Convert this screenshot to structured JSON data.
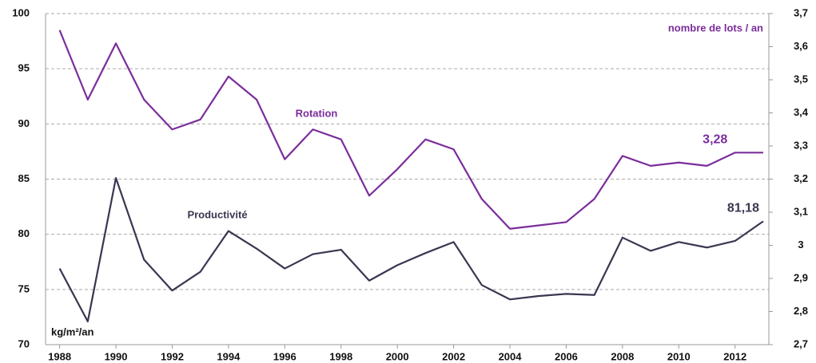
{
  "chart_data": {
    "type": "line",
    "ylabel": "kg/m²/an",
    "y2label": "nombre de lots / an",
    "x": [
      1988,
      1989,
      1990,
      1991,
      1992,
      1993,
      1994,
      1995,
      1996,
      1997,
      1998,
      1999,
      2000,
      2001,
      2002,
      2003,
      2004,
      2005,
      2006,
      2007,
      2008,
      2009,
      2010,
      2011,
      2012,
      2013
    ],
    "xlim": [
      1987.5,
      2013.2
    ],
    "xticks": [
      1988,
      1990,
      1992,
      1994,
      1996,
      1998,
      2000,
      2002,
      2004,
      2006,
      2008,
      2010,
      2012
    ],
    "ylim": [
      70,
      100
    ],
    "yticks": [
      70,
      75,
      80,
      85,
      90,
      95,
      100
    ],
    "y2lim": [
      2.7,
      3.7
    ],
    "y2ticks": [
      {
        "value": 2.7,
        "label": "2,7"
      },
      {
        "value": 2.8,
        "label": "2,8"
      },
      {
        "value": 2.9,
        "label": "2,9"
      },
      {
        "value": 3.0,
        "label": "3"
      },
      {
        "value": 3.1,
        "label": "3,1"
      },
      {
        "value": 3.2,
        "label": "3,2"
      },
      {
        "value": 3.3,
        "label": "3,3"
      },
      {
        "value": 3.4,
        "label": "3,4"
      },
      {
        "value": 3.5,
        "label": "3,5"
      },
      {
        "value": 3.6,
        "label": "3,6"
      },
      {
        "value": 3.7,
        "label": "3,7"
      }
    ],
    "grid": true,
    "series": [
      {
        "name": "Rotation",
        "color": "#7b2d9b",
        "axis": "y2",
        "values": [
          3.65,
          3.44,
          3.61,
          3.44,
          3.35,
          3.38,
          3.51,
          3.44,
          3.26,
          3.35,
          3.32,
          3.15,
          3.23,
          3.32,
          3.29,
          3.14,
          3.05,
          3.06,
          3.07,
          3.14,
          3.27,
          3.24,
          3.25,
          3.24,
          3.28,
          3.28
        ],
        "value_labels": [
          null,
          null,
          null,
          null,
          null,
          null,
          null,
          null,
          null,
          null,
          null,
          null,
          null,
          null,
          null,
          null,
          null,
          null,
          null,
          null,
          null,
          null,
          null,
          null,
          "3,28",
          null
        ]
      },
      {
        "name": "Productivité",
        "color": "#3d3550",
        "axis": "y",
        "values": [
          76.9,
          72.1,
          85.1,
          77.7,
          74.9,
          76.6,
          80.3,
          78.7,
          76.9,
          78.2,
          78.6,
          75.8,
          77.2,
          78.3,
          79.3,
          75.4,
          74.1,
          74.4,
          74.6,
          74.5,
          79.7,
          78.5,
          79.3,
          78.8,
          79.4,
          81.18
        ],
        "value_labels": [
          null,
          null,
          null,
          null,
          null,
          null,
          null,
          null,
          null,
          null,
          null,
          null,
          null,
          null,
          null,
          null,
          null,
          null,
          null,
          null,
          null,
          null,
          null,
          null,
          null,
          "81,18"
        ]
      }
    ]
  }
}
